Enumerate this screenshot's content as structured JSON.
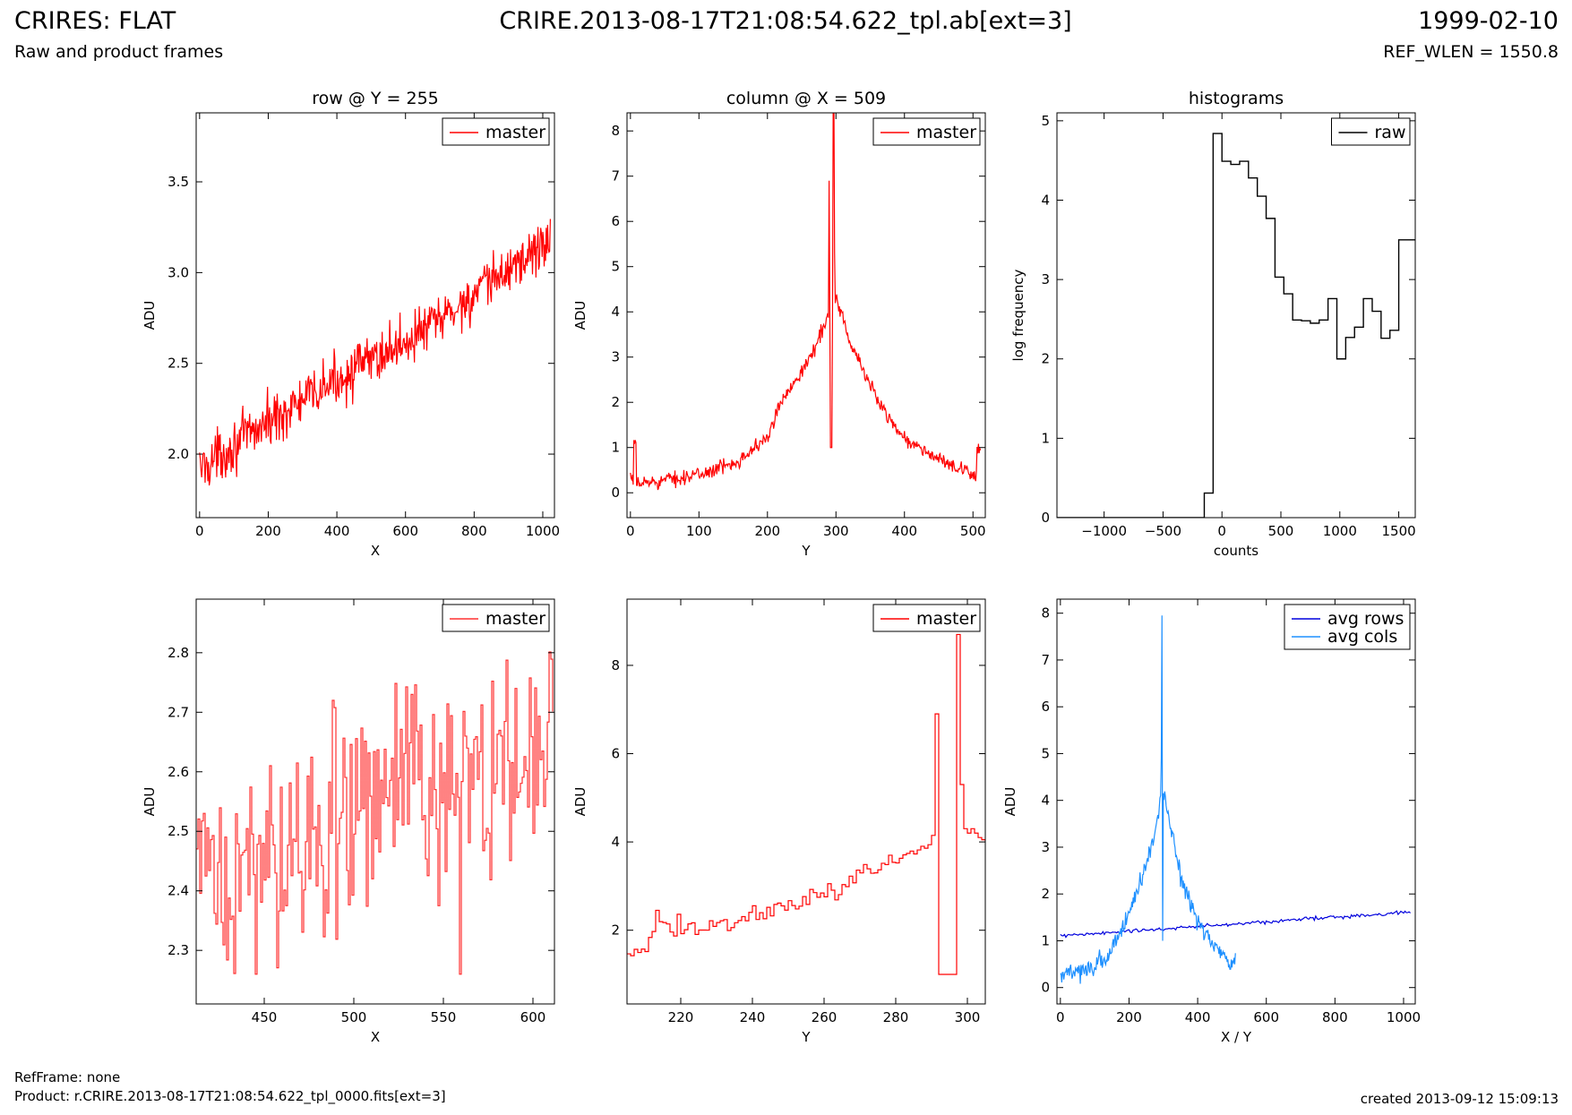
{
  "header": {
    "title": "CRIRES: FLAT",
    "subtitle": "Raw and product frames",
    "file": "CRIRE.2013-08-17T21:08:54.622_tpl.ab[ext=3]",
    "date": "1999-02-10",
    "ref_wlen": "REF_WLEN = 1550.8"
  },
  "footer": {
    "refframe": "RefFrame: none",
    "product": "Product: r.CRIRE.2013-08-17T21:08:54.622_tpl_0000.fits[ext=3]",
    "created": "created 2013-09-12 15:09:13"
  },
  "colors": {
    "master": "#ff0000",
    "master_light": "#ff3030",
    "raw": "#000000",
    "avg_rows": "#0000dd",
    "avg_cols": "#1e90ff"
  },
  "chart_data": [
    {
      "id": "row",
      "type": "line",
      "title": "row @ Y = 255",
      "xlabel": "X",
      "ylabel": "ADU",
      "xlim": [
        -10,
        1034
      ],
      "ylim": [
        1.65,
        3.88
      ],
      "xticks": [
        0,
        200,
        400,
        600,
        800,
        1000
      ],
      "yticks": [
        2.0,
        2.5,
        3.0,
        3.5
      ],
      "ytick_labels": [
        "2.0",
        "2.5",
        "3.0",
        "3.5"
      ],
      "legend": "top-right",
      "series": [
        {
          "name": "master",
          "color": "#ff0000",
          "mode": "noisy_trend",
          "step": 2,
          "x_from": 0,
          "x_to": 1023,
          "x": [
            0,
            100,
            200,
            300,
            400,
            500,
            600,
            700,
            800,
            900,
            1023
          ],
          "y": [
            1.92,
            2.05,
            2.18,
            2.29,
            2.41,
            2.52,
            2.62,
            2.74,
            2.87,
            3.02,
            3.18
          ],
          "noise": 0.07
        }
      ]
    },
    {
      "id": "col",
      "type": "line",
      "title": "column @ X = 509",
      "xlabel": "Y",
      "ylabel": "ADU",
      "xlim": [
        -5,
        518
      ],
      "ylim": [
        -0.55,
        8.4
      ],
      "xticks": [
        0,
        100,
        200,
        300,
        400,
        500
      ],
      "yticks": [
        0,
        1,
        2,
        3,
        4,
        5,
        6,
        7,
        8
      ],
      "ytick_labels": [
        "0",
        "1",
        "2",
        "3",
        "4",
        "5",
        "6",
        "7",
        "8"
      ],
      "legend": "top-right",
      "series": [
        {
          "name": "master",
          "color": "#ff0000",
          "mode": "noisy_trend",
          "step": 1,
          "x_from": 0,
          "x_to": 511,
          "x": [
            0,
            4,
            5,
            8,
            9,
            50,
            100,
            150,
            200,
            220,
            240,
            260,
            280,
            290,
            300,
            310,
            320,
            340,
            360,
            380,
            400,
            420,
            450,
            480,
            500,
            505,
            506,
            511
          ],
          "y": [
            0.3,
            0.3,
            1.0,
            1.0,
            0.2,
            0.28,
            0.4,
            0.65,
            1.2,
            2.0,
            2.5,
            2.9,
            3.6,
            4.0,
            4.3,
            3.9,
            3.3,
            2.7,
            2.1,
            1.6,
            1.2,
            1.0,
            0.75,
            0.5,
            0.4,
            0.4,
            1.0,
            1.0
          ],
          "noise": 0.08,
          "spikes": [
            [
              290,
              6.9
            ],
            [
              292,
              1.0
            ],
            [
              293,
              1.0
            ],
            [
              294,
              1.0
            ],
            [
              296,
              8.7
            ],
            [
              297,
              8.7
            ],
            [
              298,
              5.3
            ]
          ]
        }
      ]
    },
    {
      "id": "hist",
      "type": "step",
      "title": "histograms",
      "xlabel": "counts",
      "ylabel": "log frequency",
      "xlim": [
        -1400,
        1640
      ],
      "ylim": [
        0,
        5.1
      ],
      "xticks": [
        -1000,
        -500,
        0,
        500,
        1000,
        1500
      ],
      "xtick_labels": [
        "−1000",
        "−500",
        "0",
        "500",
        "1000",
        "1500"
      ],
      "yticks": [
        0,
        1,
        2,
        3,
        4,
        5
      ],
      "ytick_labels": [
        "0",
        "1",
        "2",
        "3",
        "4",
        "5"
      ],
      "legend": "top-right",
      "series": [
        {
          "name": "raw",
          "color": "#000000",
          "edges": [
            -1400,
            -150,
            -75,
            0,
            75,
            150,
            225,
            300,
            375,
            450,
            525,
            600,
            675,
            750,
            825,
            900,
            975,
            1050,
            1125,
            1200,
            1275,
            1350,
            1425,
            1500,
            1575,
            1640
          ],
          "values": [
            0,
            0.31,
            4.84,
            4.49,
            4.45,
            4.49,
            4.28,
            4.05,
            3.77,
            3.03,
            2.82,
            2.49,
            2.48,
            2.45,
            2.49,
            2.76,
            2.0,
            2.27,
            2.4,
            2.76,
            2.6,
            2.26,
            2.36,
            3.5,
            3.5
          ]
        }
      ]
    },
    {
      "id": "rowzoom",
      "type": "line",
      "title": "",
      "xlabel": "X",
      "ylabel": "ADU",
      "xlim": [
        412,
        612
      ],
      "ylim": [
        2.21,
        2.89
      ],
      "xticks": [
        450,
        500,
        550,
        600
      ],
      "yticks": [
        2.3,
        2.4,
        2.5,
        2.6,
        2.7,
        2.8
      ],
      "ytick_labels": [
        "2.3",
        "2.4",
        "2.5",
        "2.6",
        "2.7",
        "2.8"
      ],
      "legend": "top-right",
      "series": [
        {
          "name": "master",
          "color": "#ff3030",
          "mode": "noisy_trend",
          "step": 1,
          "stepped": true,
          "x_from": 412,
          "x_to": 611,
          "x": [
            412,
            450,
            500,
            550,
            611
          ],
          "y": [
            2.4,
            2.44,
            2.55,
            2.58,
            2.63
          ],
          "noise": 0.09,
          "spikes": [
            [
              445,
              2.26
            ],
            [
              559,
              2.26
            ],
            [
              488,
              2.72
            ],
            [
              532,
              2.73
            ],
            [
              590,
              2.74
            ]
          ]
        }
      ]
    },
    {
      "id": "colzoom",
      "type": "line",
      "title": "",
      "xlabel": "Y",
      "ylabel": "ADU",
      "xlim": [
        205,
        305
      ],
      "ylim": [
        0.33,
        9.5
      ],
      "xticks": [
        220,
        240,
        260,
        280,
        300
      ],
      "yticks": [
        2,
        4,
        6,
        8
      ],
      "ytick_labels": [
        "2",
        "4",
        "6",
        "8"
      ],
      "legend": "top-right",
      "series": [
        {
          "name": "master",
          "color": "#ff0000",
          "mode": "noisy_trend",
          "step": 1,
          "stepped": true,
          "x_from": 205,
          "x_to": 305,
          "x": [
            205,
            210,
            215,
            220,
            230,
            240,
            250,
            260,
            270,
            280,
            289,
            291
          ],
          "y": [
            1.55,
            1.6,
            2.1,
            2.05,
            2.15,
            2.35,
            2.55,
            2.8,
            3.2,
            3.7,
            3.95,
            3.95
          ],
          "noise": 0.12,
          "spikes": [
            [
              213,
              2.45
            ],
            [
              291,
              6.9
            ],
            [
              292,
              1.0
            ],
            [
              293,
              1.0
            ],
            [
              294,
              1.0
            ],
            [
              295,
              1.0
            ],
            [
              296,
              1.0
            ],
            [
              297,
              8.7
            ],
            [
              298,
              5.3
            ],
            [
              299,
              4.3
            ],
            [
              300,
              4.2
            ],
            [
              301,
              4.3
            ],
            [
              302,
              4.2
            ],
            [
              303,
              4.1
            ],
            [
              304,
              4.05
            ],
            [
              305,
              4.0
            ]
          ]
        }
      ]
    },
    {
      "id": "avg",
      "type": "line",
      "title": "",
      "xlabel": "X / Y",
      "ylabel": "ADU",
      "xlim": [
        -10,
        1034
      ],
      "ylim": [
        -0.35,
        8.3
      ],
      "xticks": [
        0,
        200,
        400,
        600,
        800,
        1000
      ],
      "yticks": [
        0,
        1,
        2,
        3,
        4,
        5,
        6,
        7,
        8
      ],
      "ytick_labels": [
        "0",
        "1",
        "2",
        "3",
        "4",
        "5",
        "6",
        "7",
        "8"
      ],
      "legend": "top-right",
      "series": [
        {
          "name": "avg rows",
          "color": "#0000dd",
          "mode": "noisy_trend",
          "step": 4,
          "x_from": 0,
          "x_to": 1023,
          "x": [
            0,
            1023
          ],
          "y": [
            1.1,
            1.62
          ],
          "noise": 0.02
        },
        {
          "name": "avg cols",
          "color": "#1e90ff",
          "mode": "noisy_trend",
          "step": 2,
          "x_from": 0,
          "x_to": 511,
          "x": [
            0,
            50,
            100,
            150,
            200,
            240,
            270,
            290,
            300,
            320,
            350,
            400,
            450,
            500,
            511
          ],
          "y": [
            0.28,
            0.3,
            0.45,
            0.8,
            1.6,
            2.4,
            3.1,
            3.9,
            4.2,
            3.5,
            2.4,
            1.4,
            0.9,
            0.4,
            0.7
          ],
          "noise": 0.1,
          "spikes": [
            [
              296,
              7.95
            ],
            [
              298,
              1.0
            ],
            [
              294,
              4.9
            ]
          ]
        }
      ]
    }
  ]
}
